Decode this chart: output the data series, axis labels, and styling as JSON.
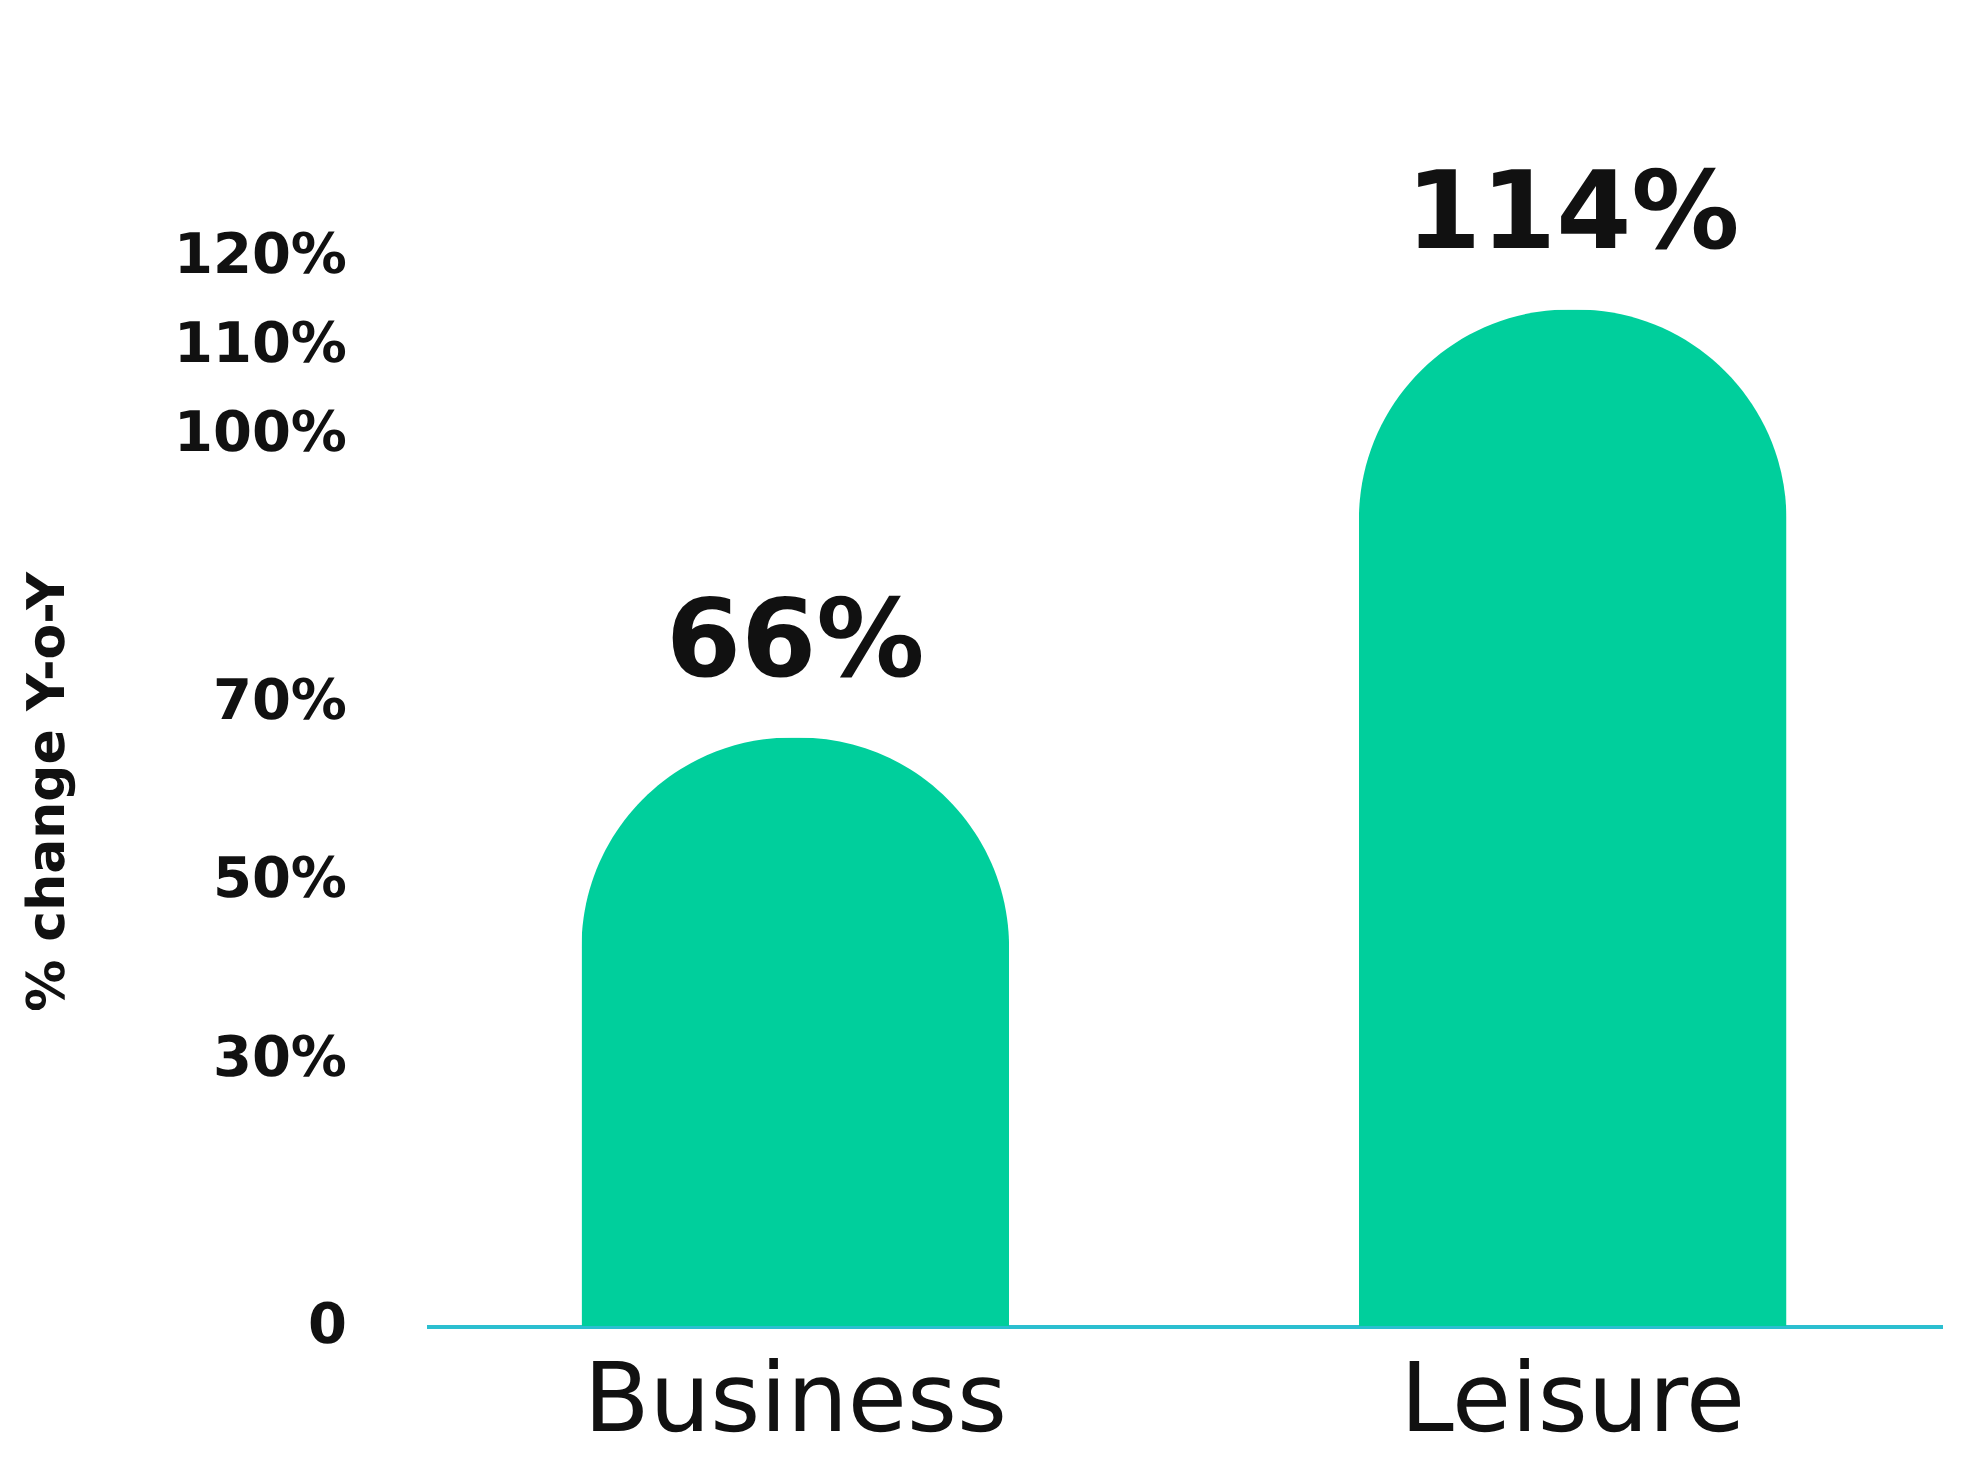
{
  "chart_data": {
    "type": "bar",
    "ylabel": "% change Y-o-Y",
    "categories": [
      "Business",
      "Leisure"
    ],
    "values": [
      66,
      114
    ],
    "value_labels": [
      "66%",
      "114%"
    ],
    "color": "#00cf9c",
    "ylim": [
      0,
      120
    ],
    "yticks": [
      0,
      {
        "value": 30,
        "label": "30%"
      },
      {
        "value": 50,
        "label": "50%"
      },
      {
        "value": 70,
        "label": "70%"
      },
      {
        "value": 100,
        "label": "100%"
      },
      {
        "value": 110,
        "label": "110%"
      },
      {
        "value": 120,
        "label": "120%"
      }
    ],
    "grid": false
  }
}
